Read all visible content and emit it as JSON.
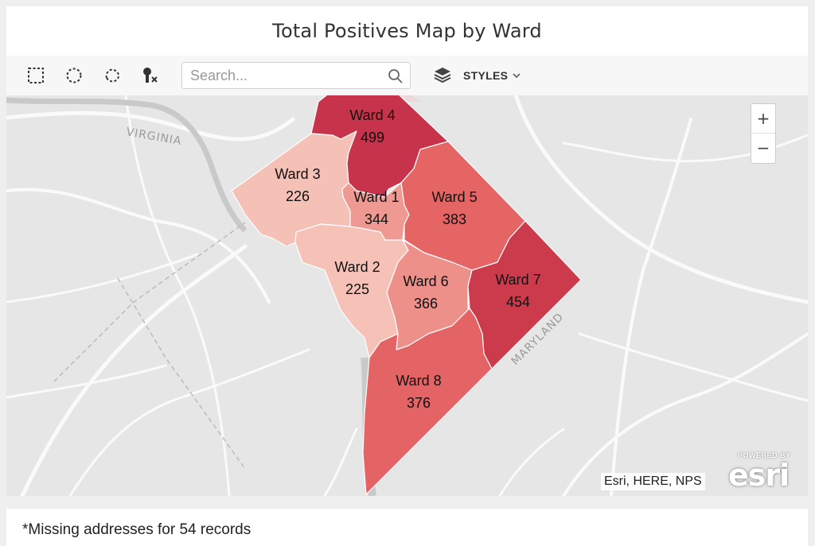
{
  "title": "Total Positives Map by Ward",
  "toolbar": {
    "tools": [
      {
        "name": "rectangle-select-icon"
      },
      {
        "name": "circle-select-icon"
      },
      {
        "name": "lasso-select-icon"
      },
      {
        "name": "clear-selection-icon"
      }
    ],
    "search_placeholder": "Search...",
    "layers_icon": "layers-icon",
    "styles_label": "STYLES"
  },
  "map": {
    "state_labels": [
      "VIRGINIA",
      "MARYLAND"
    ],
    "zoom_in": "+",
    "zoom_out": "−",
    "attribution": "Esri, HERE, NPS",
    "esri_powered": "POWERED BY",
    "esri_logo": "esri",
    "wards": [
      {
        "name": "Ward 1",
        "value": "344",
        "color": "#ee9a92"
      },
      {
        "name": "Ward 2",
        "value": "225",
        "color": "#f6c2b8"
      },
      {
        "name": "Ward 3",
        "value": "226",
        "color": "#f5c0b5"
      },
      {
        "name": "Ward 4",
        "value": "499",
        "color": "#c7334a"
      },
      {
        "name": "Ward 5",
        "value": "383",
        "color": "#e56565"
      },
      {
        "name": "Ward 6",
        "value": "366",
        "color": "#ee908a"
      },
      {
        "name": "Ward 7",
        "value": "454",
        "color": "#cb3b4c"
      },
      {
        "name": "Ward 8",
        "value": "376",
        "color": "#e46364"
      }
    ]
  },
  "footer": {
    "note": "*Missing addresses for 54 records"
  }
}
